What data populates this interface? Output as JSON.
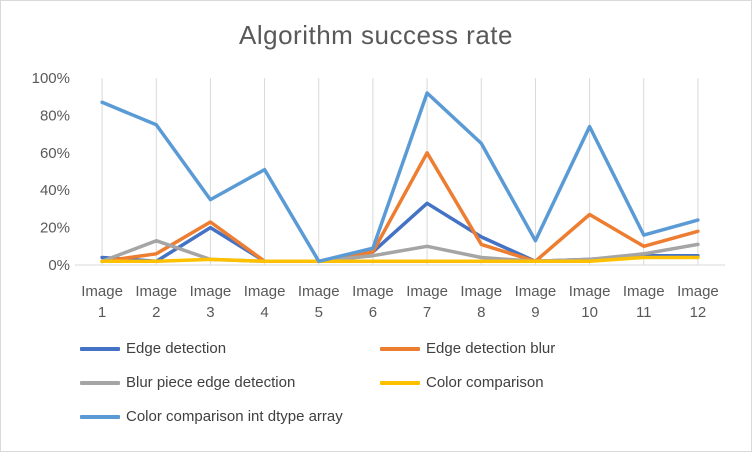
{
  "chart_data": {
    "type": "line",
    "title": "Algorithm  success  rate",
    "categories": [
      "Image 1",
      "Image 2",
      "Image 3",
      "Image 4",
      "Image 5",
      "Image 6",
      "Image 7",
      "Image 8",
      "Image 9",
      "Image 10",
      "Image 11",
      "Image 12"
    ],
    "category_lines": [
      [
        "Image",
        "1"
      ],
      [
        "Image",
        "2"
      ],
      [
        "Image",
        "3"
      ],
      [
        "Image",
        "4"
      ],
      [
        "Image",
        "5"
      ],
      [
        "Image",
        "6"
      ],
      [
        "Image",
        "7"
      ],
      [
        "Image",
        "8"
      ],
      [
        "Image",
        "9"
      ],
      [
        "Image",
        "10"
      ],
      [
        "Image",
        "11"
      ],
      [
        "Image",
        "12"
      ]
    ],
    "ylim": [
      0,
      100
    ],
    "yticks": [
      0,
      20,
      40,
      60,
      80,
      100
    ],
    "ytick_labels": [
      "0%",
      "20%",
      "40%",
      "60%",
      "80%",
      "100%"
    ],
    "grid": "vertical-category-lines",
    "legend_position": "bottom",
    "series": [
      {
        "name": "Edge detection",
        "color": "#4472c4",
        "values": [
          4,
          2,
          20,
          2,
          2,
          7,
          33,
          15,
          2,
          3,
          5,
          5
        ]
      },
      {
        "name": "Edge detection blur",
        "color": "#ed7d31",
        "values": [
          2,
          6,
          23,
          2,
          2,
          7,
          60,
          11,
          2,
          27,
          10,
          18
        ]
      },
      {
        "name": "Blur piece edge detection",
        "color": "#a5a5a5",
        "values": [
          2,
          13,
          3,
          2,
          2,
          5,
          10,
          4,
          2,
          3,
          6,
          11
        ]
      },
      {
        "name": "Color comparison",
        "color": "#ffc000",
        "values": [
          2,
          2,
          3,
          2,
          2,
          2,
          2,
          2,
          2,
          2,
          4,
          4
        ]
      },
      {
        "name": "Color comparison int dtype array",
        "color": "#5b9bd5",
        "values": [
          87,
          75,
          35,
          51,
          2,
          9,
          92,
          65,
          13,
          74,
          16,
          24
        ]
      }
    ]
  }
}
